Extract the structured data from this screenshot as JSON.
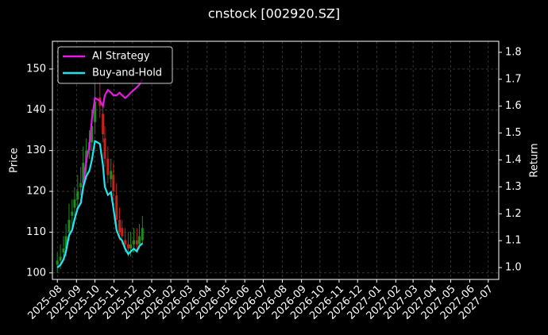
{
  "chart_data": {
    "type": "candlestick",
    "title": "cnstock [002920.SZ]",
    "ylabel": "Price",
    "y2label": "Return",
    "x": [
      "2025-08-01",
      "2025-08-06",
      "2025-08-11",
      "2025-08-15",
      "2025-08-20",
      "2025-08-25",
      "2025-08-29",
      "2025-09-03",
      "2025-09-08",
      "2025-09-12",
      "2025-09-17",
      "2025-09-22",
      "2025-09-26",
      "2025-10-01",
      "2025-10-09",
      "2025-10-14",
      "2025-10-17",
      "2025-10-22",
      "2025-10-27",
      "2025-10-31",
      "2025-11-05",
      "2025-11-10",
      "2025-11-14",
      "2025-11-19",
      "2025-11-24",
      "2025-11-28",
      "2025-12-03",
      "2025-12-08",
      "2025-12-12",
      "2025-12-17"
    ],
    "open": [
      102,
      103,
      105,
      106,
      110,
      114,
      116,
      118,
      121,
      122,
      127,
      130,
      132,
      137,
      143,
      139,
      133,
      128,
      123,
      124,
      119,
      113,
      111,
      108,
      107,
      106,
      107,
      108,
      107,
      108
    ],
    "high": [
      105,
      107,
      109,
      112,
      117,
      118,
      121,
      124,
      126,
      131,
      133,
      135,
      140,
      148,
      150,
      142,
      136,
      131,
      128,
      127,
      122,
      116,
      113,
      111,
      110,
      110,
      111,
      111,
      112,
      114
    ],
    "low": [
      100,
      101,
      103,
      104,
      108,
      111,
      114,
      116,
      119,
      120,
      124,
      128,
      130,
      134,
      138,
      132,
      126,
      122,
      121,
      118,
      111,
      108,
      107,
      105,
      104,
      104,
      105,
      105,
      106,
      107
    ],
    "close": [
      103,
      104,
      106,
      109,
      113,
      115,
      118,
      120,
      122,
      127,
      130,
      132,
      136,
      142,
      141,
      134,
      128,
      124,
      125,
      120,
      113,
      110,
      109,
      107,
      106,
      107,
      108,
      107,
      109,
      111
    ],
    "up_color": "#1e8c1e",
    "down_color": "#c4221a",
    "series": [
      {
        "name": "AI Strategy",
        "color": "#e619e6",
        "axis": "y2",
        "values": [
          1.0,
          1.01,
          1.03,
          1.06,
          1.12,
          1.14,
          1.18,
          1.22,
          1.24,
          1.3,
          1.4,
          1.45,
          1.55,
          1.63,
          1.62,
          1.6,
          1.64,
          1.66,
          1.65,
          1.64,
          1.64,
          1.65,
          1.64,
          1.63,
          1.64,
          1.65,
          1.66,
          1.67,
          1.68,
          1.7
        ]
      },
      {
        "name": "Buy-and-Hold",
        "color": "#1ee6f0",
        "axis": "y2",
        "values": [
          1.0,
          1.01,
          1.03,
          1.06,
          1.12,
          1.14,
          1.18,
          1.22,
          1.24,
          1.3,
          1.34,
          1.36,
          1.4,
          1.47,
          1.46,
          1.38,
          1.3,
          1.27,
          1.28,
          1.22,
          1.14,
          1.11,
          1.1,
          1.07,
          1.05,
          1.06,
          1.07,
          1.06,
          1.08,
          1.09
        ]
      }
    ],
    "xlim": [
      "2025-07-24",
      "2027-07-18"
    ],
    "xticks": [
      "2025-08",
      "2025-09",
      "2025-10",
      "2025-11",
      "2025-12",
      "2026-01",
      "2026-02",
      "2026-03",
      "2026-04",
      "2026-05",
      "2026-06",
      "2026-07",
      "2026-08",
      "2026-09",
      "2026-10",
      "2026-11",
      "2026-12",
      "2027-01",
      "2027-02",
      "2027-03",
      "2027-04",
      "2027-05",
      "2027-06",
      "2027-07"
    ],
    "ylim": [
      98.4,
      156.8
    ],
    "yticks": [
      100,
      110,
      120,
      130,
      140,
      150
    ],
    "y2lim": [
      0.956,
      1.841
    ],
    "y2ticks": [
      {
        "value": 1.0,
        "label": "1.0"
      },
      1.1,
      1.2,
      1.3,
      1.4,
      1.5,
      1.6,
      1.7,
      1.8
    ],
    "grid": true,
    "legend": "upper left"
  }
}
